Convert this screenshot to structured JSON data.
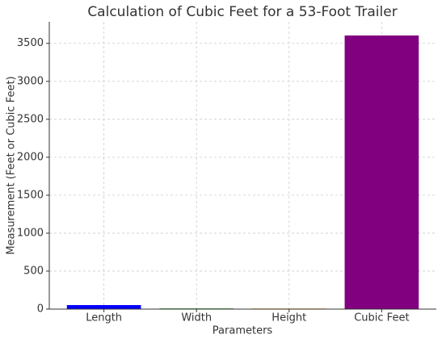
{
  "chart_data": {
    "type": "bar",
    "title": "Calculation of Cubic Feet for a 53-Foot Trailer",
    "x_label": "Parameters",
    "y_label": "Measurement (Feet or Cubic Feet)",
    "categories": [
      "Length",
      "Width",
      "Height",
      "Cubic Feet"
    ],
    "values": [
      53,
      8.5,
      8,
      3604
    ],
    "colors": [
      "blue",
      "green",
      "orange",
      "purple"
    ],
    "ylim": [
      0,
      3784.2
    ],
    "yticks": [
      0,
      500,
      1000,
      1500,
      2000,
      2500,
      3000,
      3500
    ],
    "grid": true
  }
}
